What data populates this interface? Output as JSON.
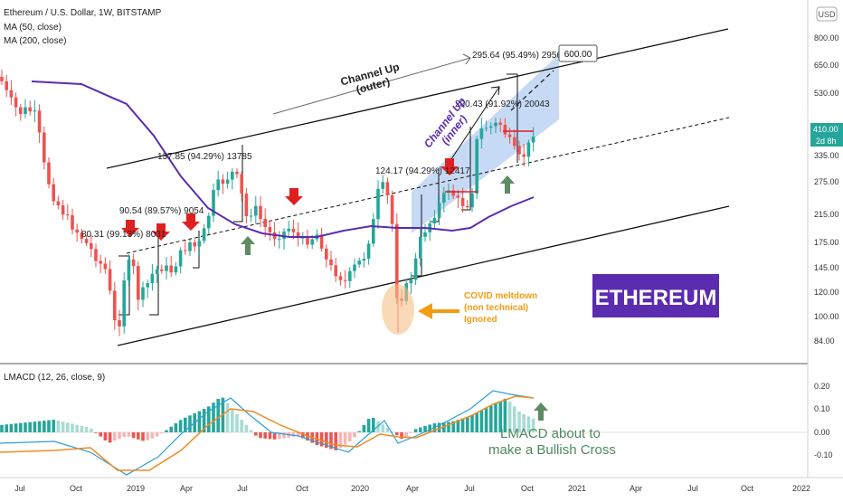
{
  "header": {
    "symbol_line": "Ethereum / U.S. Dollar, 1W, BITSTAMP",
    "ma50_label": "MA (50, close)",
    "ma200_label": "MA (200, close)",
    "currency_button": "USD"
  },
  "price_axis": {
    "labels": [
      "800.00",
      "650.00",
      "530.00",
      "410.00",
      "335.00",
      "275.00",
      "215.00",
      "175.00",
      "145.00",
      "120.00",
      "100.00",
      "84.00"
    ],
    "last_price": "410.00",
    "countdown": "2d 8h"
  },
  "time_axis": {
    "labels": [
      "Jul",
      "Oct",
      "2019",
      "Apr",
      "Jul",
      "Oct",
      "2020",
      "Apr",
      "Jul",
      "Oct",
      "2021",
      "Apr",
      "Jul",
      "Oct",
      "2022"
    ]
  },
  "annotations": {
    "channel_outer": "Channel Up\n(outer)",
    "channel_inner": "Channel Up\n(inner)",
    "target": "600.00",
    "measure_1": "80.31 (99.13%) 8031",
    "measure_2": "90.54 (89.57%) 9054",
    "measure_3": "137.85 (94.29%) 13785",
    "measure_4": "124.17 (94.29%) 12417",
    "measure_5": "200.43 (91.92%) 20043",
    "measure_6": "295.64 (95.49%) 29564",
    "covid": "COVID meltdown\n(non technical)\nIgnored",
    "brand": "ETHEREUM",
    "lmacd_note": "LMACD about to\nmake a Bullish Cross"
  },
  "indicator": {
    "title": "LMACD (12, 26, close, 9)",
    "axis_labels": [
      "0.20",
      "0.10",
      "0.00",
      "-0.10"
    ]
  },
  "colors": {
    "up": "#26a69a",
    "down": "#ef5350",
    "ma50": "#5b2cb0",
    "brand_bg": "#5b2cb0",
    "orange": "#f39c12",
    "arrow_green": "#5e8b63",
    "arrow_red": "#e02020",
    "macd": "#2ca0d8",
    "signal": "#f08a24"
  },
  "chart_data": {
    "type": "candlestick",
    "timeframe": "1W",
    "x_range": [
      "2018-05",
      "2022-01"
    ],
    "y_scale": "log",
    "y_range": [
      75,
      950
    ],
    "ma50_points": [
      [
        "2018-06",
        580
      ],
      [
        "2018-09",
        520
      ],
      [
        "2018-11",
        420
      ],
      [
        "2019-01",
        300
      ],
      [
        "2019-03",
        240
      ],
      [
        "2019-06",
        215
      ],
      [
        "2019-09",
        190
      ],
      [
        "2019-12",
        180
      ],
      [
        "2020-03",
        178
      ],
      [
        "2020-06",
        185
      ],
      [
        "2020-08",
        205
      ],
      [
        "2020-10",
        240
      ]
    ],
    "indicator_range": [
      -0.15,
      0.25
    ]
  }
}
